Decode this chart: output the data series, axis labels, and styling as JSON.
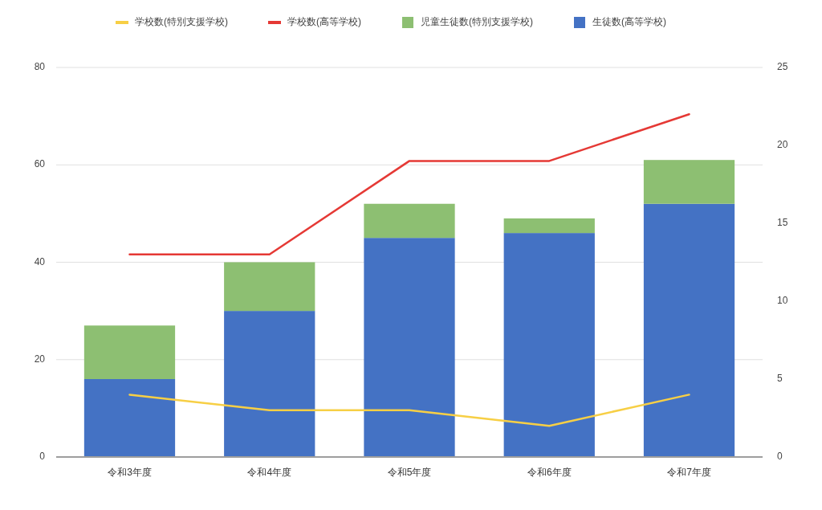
{
  "chart_data": {
    "type": "bar",
    "categories": [
      "令和3年度",
      "令和4年度",
      "令和5年度",
      "令和6年度",
      "令和7年度"
    ],
    "stacked": true,
    "grid": "y",
    "legend": "top",
    "ylim": [
      0,
      80
    ],
    "yticks": [
      0,
      20,
      40,
      60,
      80
    ],
    "y2lim": [
      0,
      25
    ],
    "y2ticks": [
      0,
      5,
      10,
      15,
      20,
      25
    ],
    "series": [
      {
        "name": "生徒数(高等学校)",
        "color": "#4472c4",
        "values": [
          16,
          30,
          45,
          46,
          52
        ]
      },
      {
        "name": "児童生徒数(特別支援学校)",
        "color": "#8dbf72",
        "values": [
          11,
          10,
          7,
          3,
          9
        ]
      },
      {
        "name": "学校数(高等学校)",
        "type": "line",
        "axis": "y2",
        "color": "#e53935",
        "values": [
          13,
          13,
          19,
          19,
          22
        ]
      },
      {
        "name": "学校数(特別支援学校)",
        "type": "line",
        "axis": "y2",
        "color": "#f7cf45",
        "values": [
          4,
          3,
          3,
          2,
          4
        ]
      }
    ]
  }
}
